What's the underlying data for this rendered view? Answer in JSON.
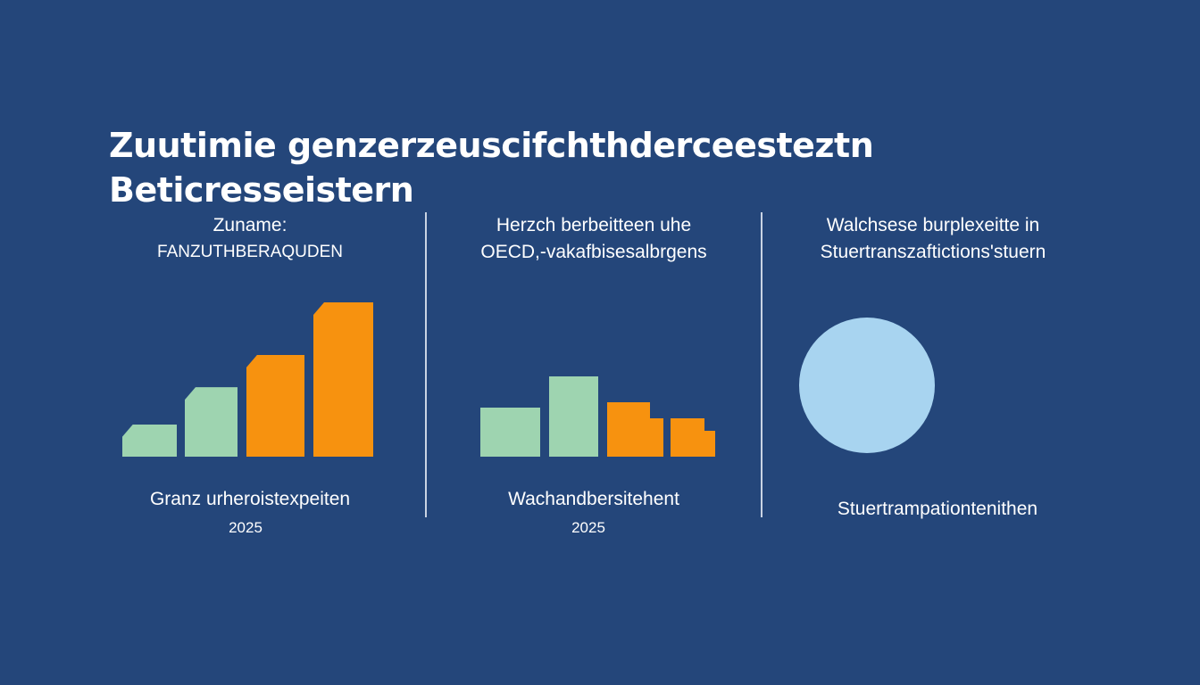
{
  "title": {
    "line1": "Zuutimie genzerzeuscifchthderceesteztn",
    "line2": "Beticresseistern"
  },
  "colors": {
    "background": "#24467a",
    "green": "#9ed4b0",
    "orange": "#f7920f",
    "circle": "#a8d4f0"
  },
  "chart_data": [
    {
      "type": "bar",
      "heading": [
        "Zuname:",
        "FANZUTHBERAQUDEN"
      ],
      "caption": "Granz urheroistexpeiten",
      "year": "2025",
      "values": [
        21,
        45,
        66,
        100
      ],
      "colors": [
        "green",
        "green",
        "orange",
        "orange"
      ],
      "grid": false
    },
    {
      "type": "bar",
      "heading": [
        "Herzch berbeitteen uhe",
        "OECD,-vakafbisesalbrgens"
      ],
      "caption": "Wachandbersitehent",
      "year": "2025",
      "values": [
        32,
        52,
        35,
        25
      ],
      "step_values": [
        null,
        null,
        25,
        17
      ],
      "colors": [
        "green",
        "green",
        "orange",
        "orange"
      ],
      "grid": false
    },
    {
      "type": "pie",
      "heading": [
        "Walchsese burplexeitte in",
        "Stuertranszaftictions'stuern"
      ],
      "caption": "Stuertrampationtenithen",
      "values": [
        100
      ],
      "colors": [
        "circle"
      ]
    }
  ]
}
